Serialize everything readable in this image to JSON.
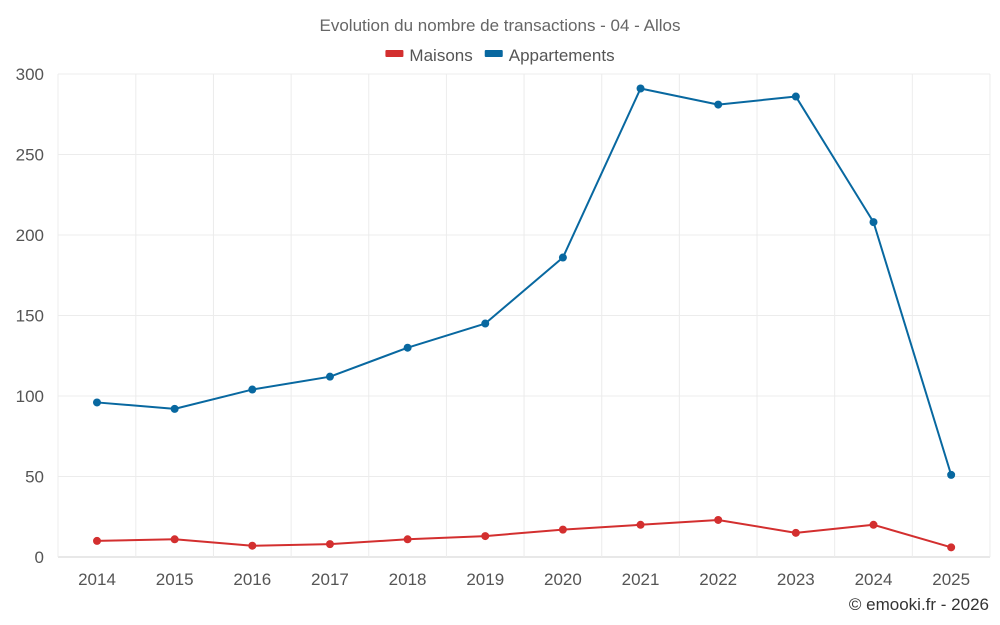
{
  "chart_data": {
    "type": "line",
    "title": "Evolution du nombre de transactions - 04 - Allos",
    "xlabel": "",
    "ylabel": "",
    "categories": [
      "2014",
      "2015",
      "2016",
      "2017",
      "2018",
      "2019",
      "2020",
      "2021",
      "2022",
      "2023",
      "2024",
      "2025"
    ],
    "ylim": [
      0,
      300
    ],
    "yticks": [
      0,
      50,
      100,
      150,
      200,
      250,
      300
    ],
    "grid": true,
    "legend_position": "top-center",
    "series": [
      {
        "name": "Maisons",
        "color": "#d32f2f",
        "values": [
          10,
          11,
          7,
          8,
          11,
          13,
          17,
          20,
          23,
          15,
          20,
          6
        ]
      },
      {
        "name": "Appartements",
        "color": "#0868a0",
        "values": [
          96,
          92,
          104,
          112,
          130,
          145,
          186,
          291,
          281,
          286,
          208,
          51
        ]
      }
    ]
  },
  "footer": {
    "credit": "© emooki.fr - 2026"
  }
}
